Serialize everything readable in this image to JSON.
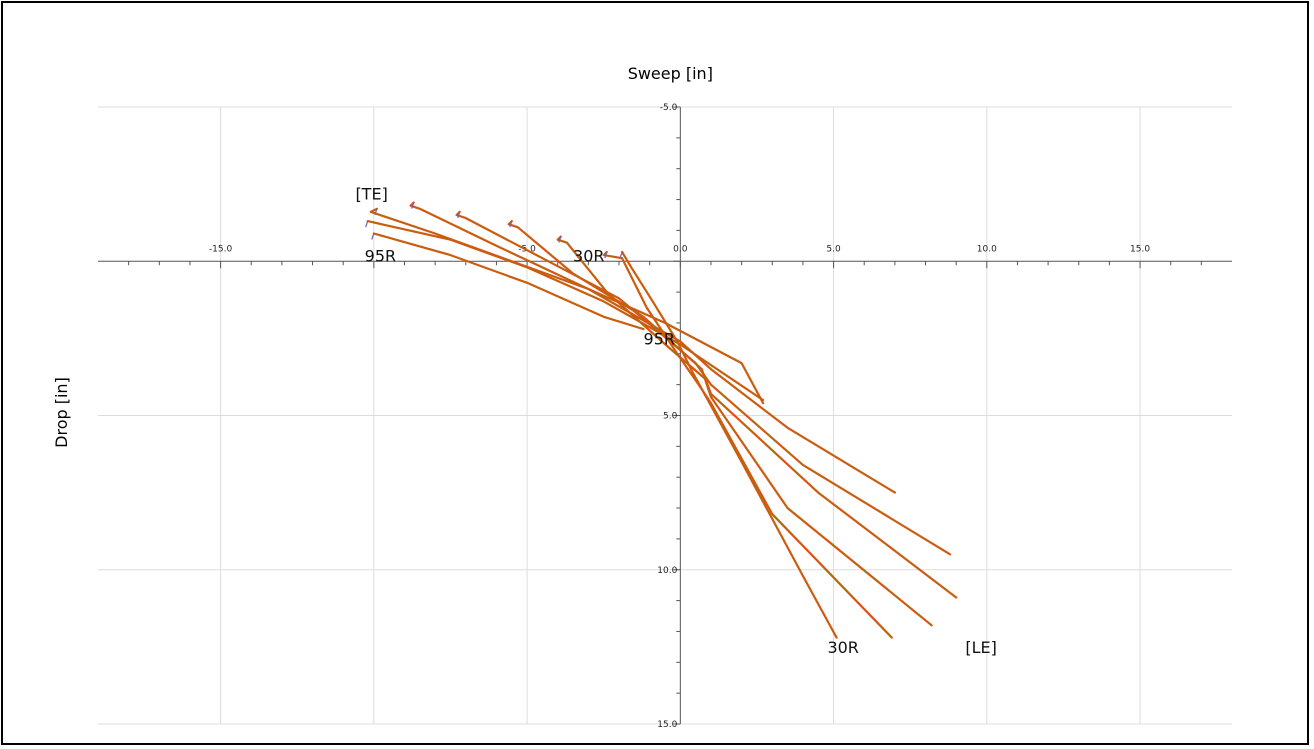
{
  "chart_data": {
    "type": "line",
    "title": "",
    "xlabel": "Sweep [in]",
    "ylabel": "Drop [in]",
    "xlim": [
      -19.0,
      18.0
    ],
    "ylim": [
      15.0,
      -5.0
    ],
    "y_inverted": true,
    "grid": true,
    "legend": "none",
    "xticks": [
      -15.0,
      -10.0,
      -5.0,
      0.0,
      5.0,
      10.0,
      15.0
    ],
    "xtick_labels": [
      "-15.0",
      "",
      "-5.0",
      "0.0",
      "5.0",
      "10.0",
      "15.0"
    ],
    "yticks": [
      -5.0,
      0.0,
      5.0,
      10.0,
      15.0
    ],
    "ytick_labels": [
      "-5.0",
      "0.0",
      "5.0",
      "10.0",
      "15.0"
    ],
    "annotations": [
      {
        "text": "[TE]",
        "x": -10.6,
        "y": -2.0
      },
      {
        "text": "95R",
        "x": -10.3,
        "y": 0.0
      },
      {
        "text": "30R",
        "x": -3.5,
        "y": 0.0
      },
      {
        "text": "95R",
        "x": -1.2,
        "y": 2.7
      },
      {
        "text": "30R",
        "x": 4.8,
        "y": 12.7
      },
      {
        "text": "[LE]",
        "x": 9.3,
        "y": 12.7
      }
    ],
    "colors": {
      "main": "#e8500e",
      "overlay": "#8a7a14",
      "hook": "#7a5ab0",
      "axis": "#555555",
      "grid": "#dddddd"
    },
    "series": [
      {
        "x": [
          -9.9,
          -10.1,
          -9.8,
          -8.0,
          -5.5,
          -3.0,
          -0.5,
          2.0,
          2.7
        ],
        "y": [
          -1.7,
          -1.6,
          -1.5,
          -0.9,
          0.0,
          0.9,
          2.0,
          3.3,
          4.6
        ]
      },
      {
        "x": [
          -8.7,
          -8.8,
          -8.5,
          -6.0,
          -3.0,
          0.0,
          1.0,
          3.5,
          7.0
        ],
        "y": [
          -1.9,
          -1.8,
          -1.7,
          -0.5,
          0.9,
          2.6,
          3.5,
          5.4,
          7.5
        ]
      },
      {
        "x": [
          -7.2,
          -7.3,
          -7.0,
          -4.5,
          -2.0,
          0.5,
          1.0,
          4.0,
          8.8
        ],
        "y": [
          -1.6,
          -1.5,
          -1.4,
          -0.1,
          1.2,
          3.3,
          4.0,
          6.6,
          9.5
        ]
      },
      {
        "x": [
          -5.5,
          -5.6,
          -5.3,
          -3.5,
          -1.2,
          0.7,
          1.0,
          4.5,
          9.0
        ],
        "y": [
          -1.3,
          -1.2,
          -1.1,
          0.4,
          1.8,
          3.5,
          4.3,
          7.5,
          10.9
        ]
      },
      {
        "x": [
          -3.9,
          -4.0,
          -3.7,
          -2.4,
          -0.6,
          0.8,
          1.0,
          3.5,
          8.2
        ],
        "y": [
          -0.8,
          -0.7,
          -0.6,
          1.0,
          2.6,
          3.8,
          4.4,
          8.0,
          11.8
        ]
      },
      {
        "x": [
          -2.4,
          -2.5,
          -1.9,
          -1.1,
          -0.1,
          0.6,
          1.0,
          3.0,
          6.9
        ],
        "y": [
          -0.3,
          -0.2,
          -0.1,
          1.5,
          3.0,
          4.0,
          4.6,
          8.2,
          12.2
        ]
      },
      {
        "x": [
          -1.9,
          -1.6,
          -0.9,
          -0.1,
          0.4,
          0.9,
          2.0,
          4.0,
          5.1
        ],
        "y": [
          -0.3,
          0.2,
          1.3,
          2.6,
          3.6,
          4.5,
          6.5,
          10.2,
          12.2
        ]
      },
      {
        "x": [
          -10.2,
          -7.5,
          -5.0,
          -2.5,
          0.0,
          2.7
        ],
        "y": [
          -1.3,
          -0.7,
          0.2,
          1.3,
          2.7,
          4.5
        ]
      },
      {
        "x": [
          -10.0,
          -7.5,
          -5.0,
          -2.5,
          -1.2
        ],
        "y": [
          -0.9,
          -0.2,
          0.7,
          1.8,
          2.2
        ]
      }
    ]
  }
}
